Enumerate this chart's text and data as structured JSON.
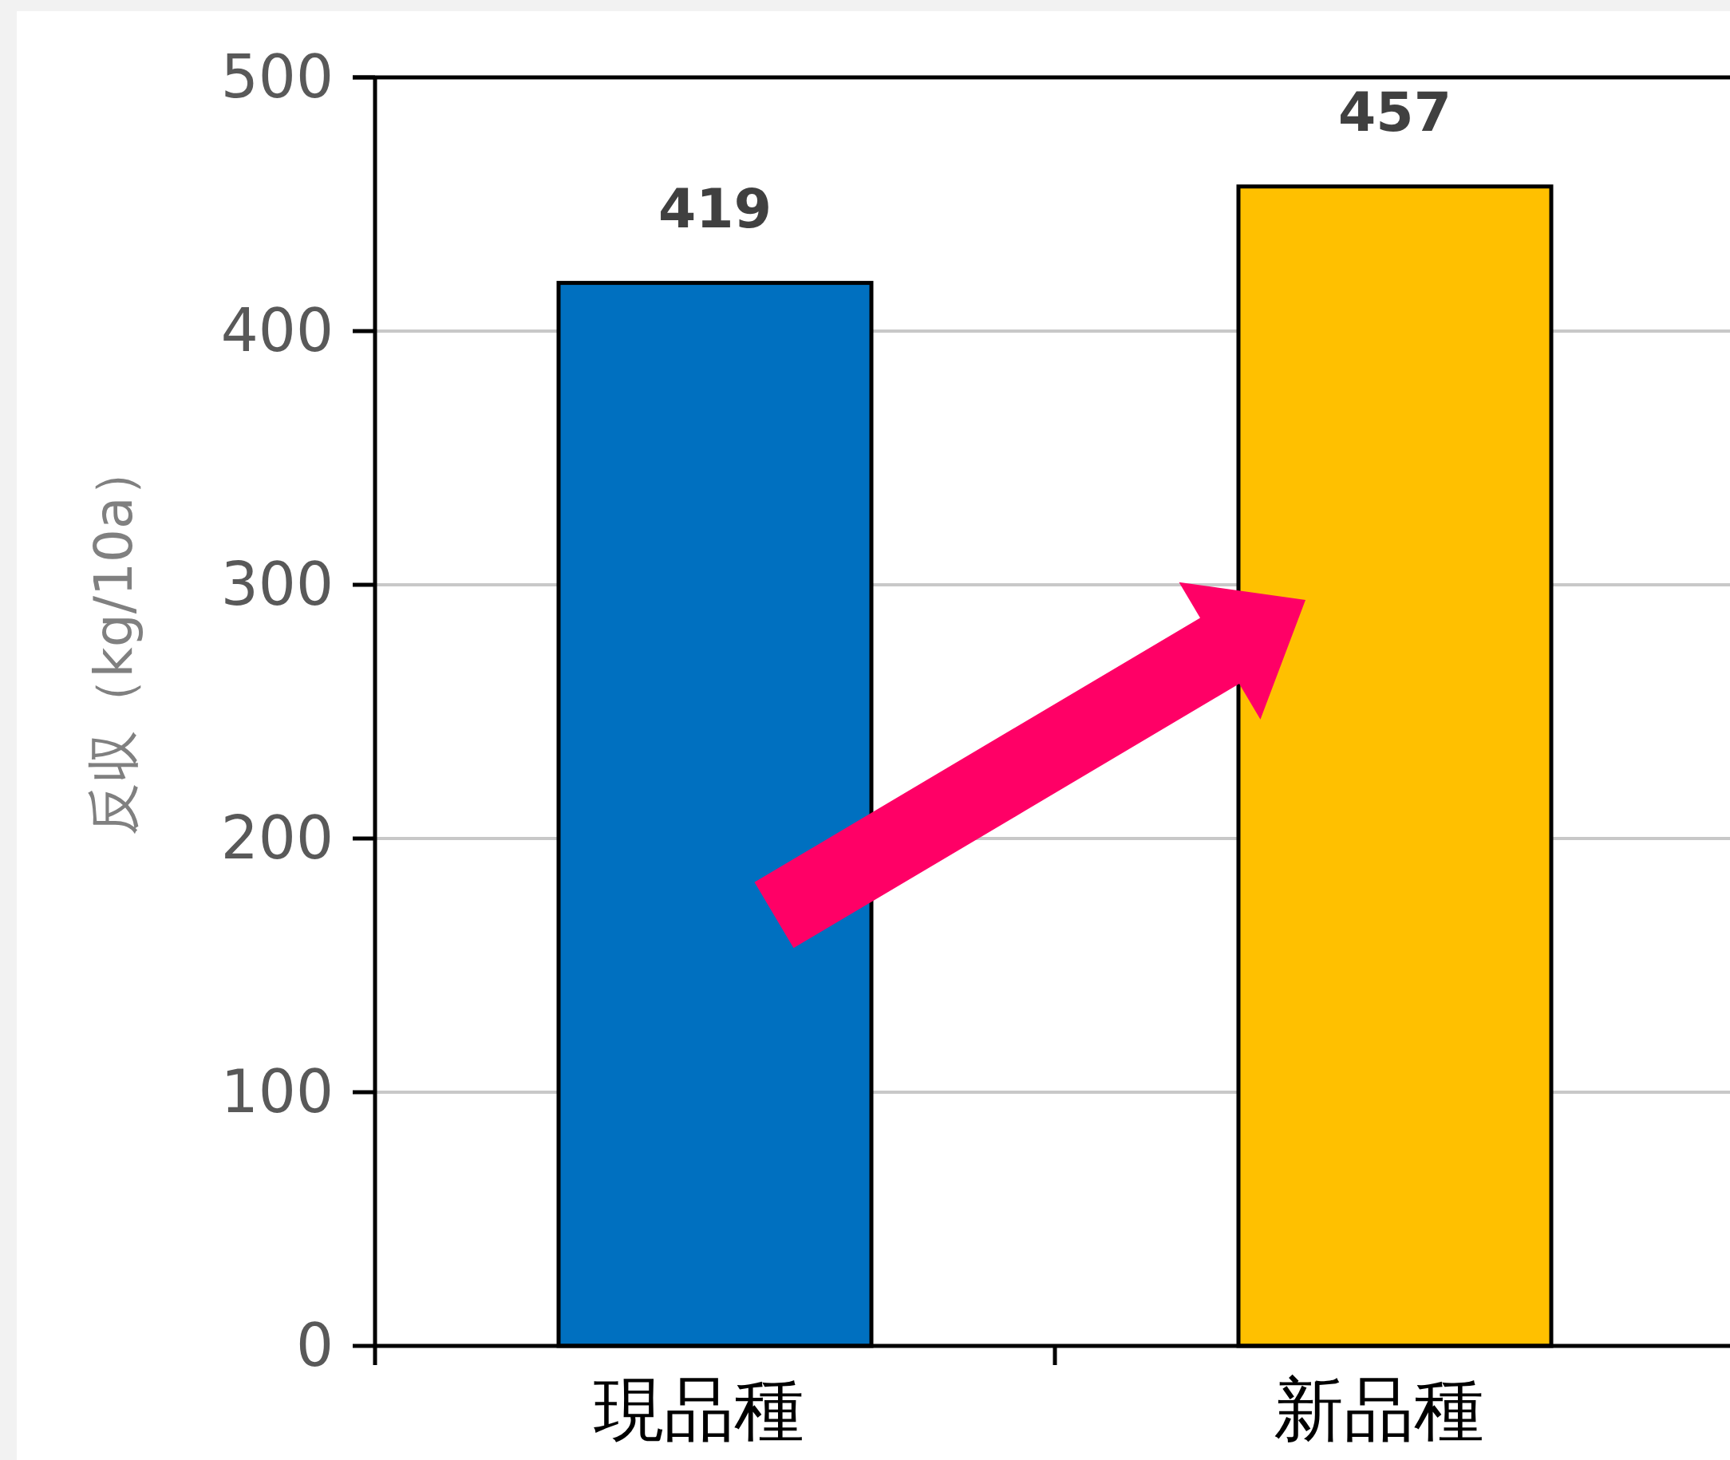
{
  "chart_data": {
    "type": "bar",
    "ylabel": "反収（kg/10a）",
    "categories": [
      "現品種",
      "新品種"
    ],
    "values": [
      419,
      457
    ],
    "colors": [
      "#0070c0",
      "#ffc000"
    ],
    "ylim": [
      0,
      500
    ],
    "yticks": [
      0,
      100,
      200,
      300,
      400,
      500
    ],
    "grid": "y",
    "data_labels": true
  }
}
